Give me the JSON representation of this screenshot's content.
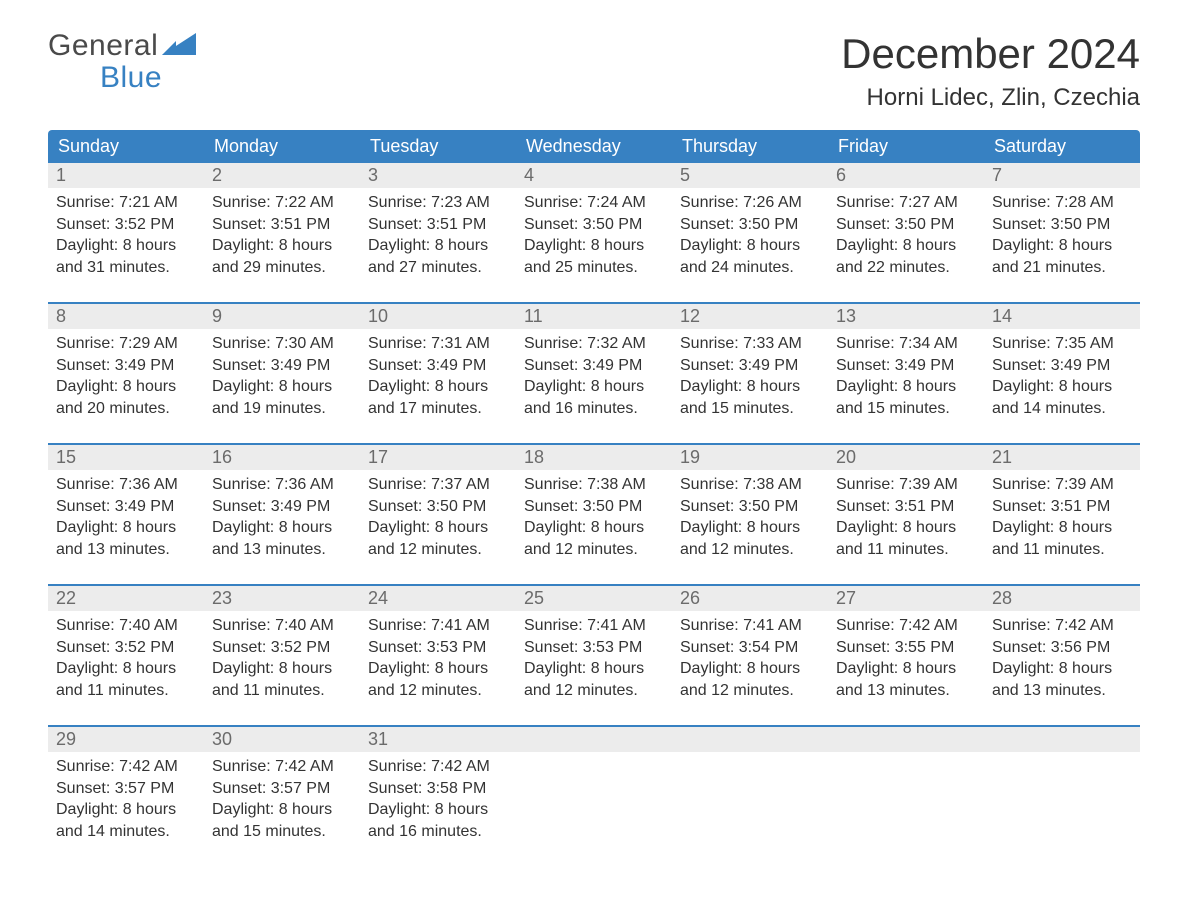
{
  "brand": {
    "top": "General",
    "bottom": "Blue",
    "flag_color": "#3781c2",
    "text_gray": "#4a4a4a"
  },
  "title": "December 2024",
  "location": "Horni Lidec, Zlin, Czechia",
  "colors": {
    "header_bg": "#3781c2",
    "header_text": "#ffffff",
    "daynum_bg": "#ececec",
    "daynum_text": "#6b6b6b",
    "body_text": "#333333",
    "week_divider": "#3781c2",
    "page_bg": "#ffffff"
  },
  "typography": {
    "title_fontsize": 42,
    "location_fontsize": 24,
    "weekday_fontsize": 18,
    "daynum_fontsize": 18,
    "cell_fontsize": 16,
    "logo_fontsize": 30
  },
  "weekdays": [
    "Sunday",
    "Monday",
    "Tuesday",
    "Wednesday",
    "Thursday",
    "Friday",
    "Saturday"
  ],
  "weeks": [
    [
      {
        "n": "1",
        "sr": "Sunrise: 7:21 AM",
        "ss": "Sunset: 3:52 PM",
        "d1": "Daylight: 8 hours",
        "d2": "and 31 minutes."
      },
      {
        "n": "2",
        "sr": "Sunrise: 7:22 AM",
        "ss": "Sunset: 3:51 PM",
        "d1": "Daylight: 8 hours",
        "d2": "and 29 minutes."
      },
      {
        "n": "3",
        "sr": "Sunrise: 7:23 AM",
        "ss": "Sunset: 3:51 PM",
        "d1": "Daylight: 8 hours",
        "d2": "and 27 minutes."
      },
      {
        "n": "4",
        "sr": "Sunrise: 7:24 AM",
        "ss": "Sunset: 3:50 PM",
        "d1": "Daylight: 8 hours",
        "d2": "and 25 minutes."
      },
      {
        "n": "5",
        "sr": "Sunrise: 7:26 AM",
        "ss": "Sunset: 3:50 PM",
        "d1": "Daylight: 8 hours",
        "d2": "and 24 minutes."
      },
      {
        "n": "6",
        "sr": "Sunrise: 7:27 AM",
        "ss": "Sunset: 3:50 PM",
        "d1": "Daylight: 8 hours",
        "d2": "and 22 minutes."
      },
      {
        "n": "7",
        "sr": "Sunrise: 7:28 AM",
        "ss": "Sunset: 3:50 PM",
        "d1": "Daylight: 8 hours",
        "d2": "and 21 minutes."
      }
    ],
    [
      {
        "n": "8",
        "sr": "Sunrise: 7:29 AM",
        "ss": "Sunset: 3:49 PM",
        "d1": "Daylight: 8 hours",
        "d2": "and 20 minutes."
      },
      {
        "n": "9",
        "sr": "Sunrise: 7:30 AM",
        "ss": "Sunset: 3:49 PM",
        "d1": "Daylight: 8 hours",
        "d2": "and 19 minutes."
      },
      {
        "n": "10",
        "sr": "Sunrise: 7:31 AM",
        "ss": "Sunset: 3:49 PM",
        "d1": "Daylight: 8 hours",
        "d2": "and 17 minutes."
      },
      {
        "n": "11",
        "sr": "Sunrise: 7:32 AM",
        "ss": "Sunset: 3:49 PM",
        "d1": "Daylight: 8 hours",
        "d2": "and 16 minutes."
      },
      {
        "n": "12",
        "sr": "Sunrise: 7:33 AM",
        "ss": "Sunset: 3:49 PM",
        "d1": "Daylight: 8 hours",
        "d2": "and 15 minutes."
      },
      {
        "n": "13",
        "sr": "Sunrise: 7:34 AM",
        "ss": "Sunset: 3:49 PM",
        "d1": "Daylight: 8 hours",
        "d2": "and 15 minutes."
      },
      {
        "n": "14",
        "sr": "Sunrise: 7:35 AM",
        "ss": "Sunset: 3:49 PM",
        "d1": "Daylight: 8 hours",
        "d2": "and 14 minutes."
      }
    ],
    [
      {
        "n": "15",
        "sr": "Sunrise: 7:36 AM",
        "ss": "Sunset: 3:49 PM",
        "d1": "Daylight: 8 hours",
        "d2": "and 13 minutes."
      },
      {
        "n": "16",
        "sr": "Sunrise: 7:36 AM",
        "ss": "Sunset: 3:49 PM",
        "d1": "Daylight: 8 hours",
        "d2": "and 13 minutes."
      },
      {
        "n": "17",
        "sr": "Sunrise: 7:37 AM",
        "ss": "Sunset: 3:50 PM",
        "d1": "Daylight: 8 hours",
        "d2": "and 12 minutes."
      },
      {
        "n": "18",
        "sr": "Sunrise: 7:38 AM",
        "ss": "Sunset: 3:50 PM",
        "d1": "Daylight: 8 hours",
        "d2": "and 12 minutes."
      },
      {
        "n": "19",
        "sr": "Sunrise: 7:38 AM",
        "ss": "Sunset: 3:50 PM",
        "d1": "Daylight: 8 hours",
        "d2": "and 12 minutes."
      },
      {
        "n": "20",
        "sr": "Sunrise: 7:39 AM",
        "ss": "Sunset: 3:51 PM",
        "d1": "Daylight: 8 hours",
        "d2": "and 11 minutes."
      },
      {
        "n": "21",
        "sr": "Sunrise: 7:39 AM",
        "ss": "Sunset: 3:51 PM",
        "d1": "Daylight: 8 hours",
        "d2": "and 11 minutes."
      }
    ],
    [
      {
        "n": "22",
        "sr": "Sunrise: 7:40 AM",
        "ss": "Sunset: 3:52 PM",
        "d1": "Daylight: 8 hours",
        "d2": "and 11 minutes."
      },
      {
        "n": "23",
        "sr": "Sunrise: 7:40 AM",
        "ss": "Sunset: 3:52 PM",
        "d1": "Daylight: 8 hours",
        "d2": "and 11 minutes."
      },
      {
        "n": "24",
        "sr": "Sunrise: 7:41 AM",
        "ss": "Sunset: 3:53 PM",
        "d1": "Daylight: 8 hours",
        "d2": "and 12 minutes."
      },
      {
        "n": "25",
        "sr": "Sunrise: 7:41 AM",
        "ss": "Sunset: 3:53 PM",
        "d1": "Daylight: 8 hours",
        "d2": "and 12 minutes."
      },
      {
        "n": "26",
        "sr": "Sunrise: 7:41 AM",
        "ss": "Sunset: 3:54 PM",
        "d1": "Daylight: 8 hours",
        "d2": "and 12 minutes."
      },
      {
        "n": "27",
        "sr": "Sunrise: 7:42 AM",
        "ss": "Sunset: 3:55 PM",
        "d1": "Daylight: 8 hours",
        "d2": "and 13 minutes."
      },
      {
        "n": "28",
        "sr": "Sunrise: 7:42 AM",
        "ss": "Sunset: 3:56 PM",
        "d1": "Daylight: 8 hours",
        "d2": "and 13 minutes."
      }
    ],
    [
      {
        "n": "29",
        "sr": "Sunrise: 7:42 AM",
        "ss": "Sunset: 3:57 PM",
        "d1": "Daylight: 8 hours",
        "d2": "and 14 minutes."
      },
      {
        "n": "30",
        "sr": "Sunrise: 7:42 AM",
        "ss": "Sunset: 3:57 PM",
        "d1": "Daylight: 8 hours",
        "d2": "and 15 minutes."
      },
      {
        "n": "31",
        "sr": "Sunrise: 7:42 AM",
        "ss": "Sunset: 3:58 PM",
        "d1": "Daylight: 8 hours",
        "d2": "and 16 minutes."
      },
      null,
      null,
      null,
      null
    ]
  ]
}
